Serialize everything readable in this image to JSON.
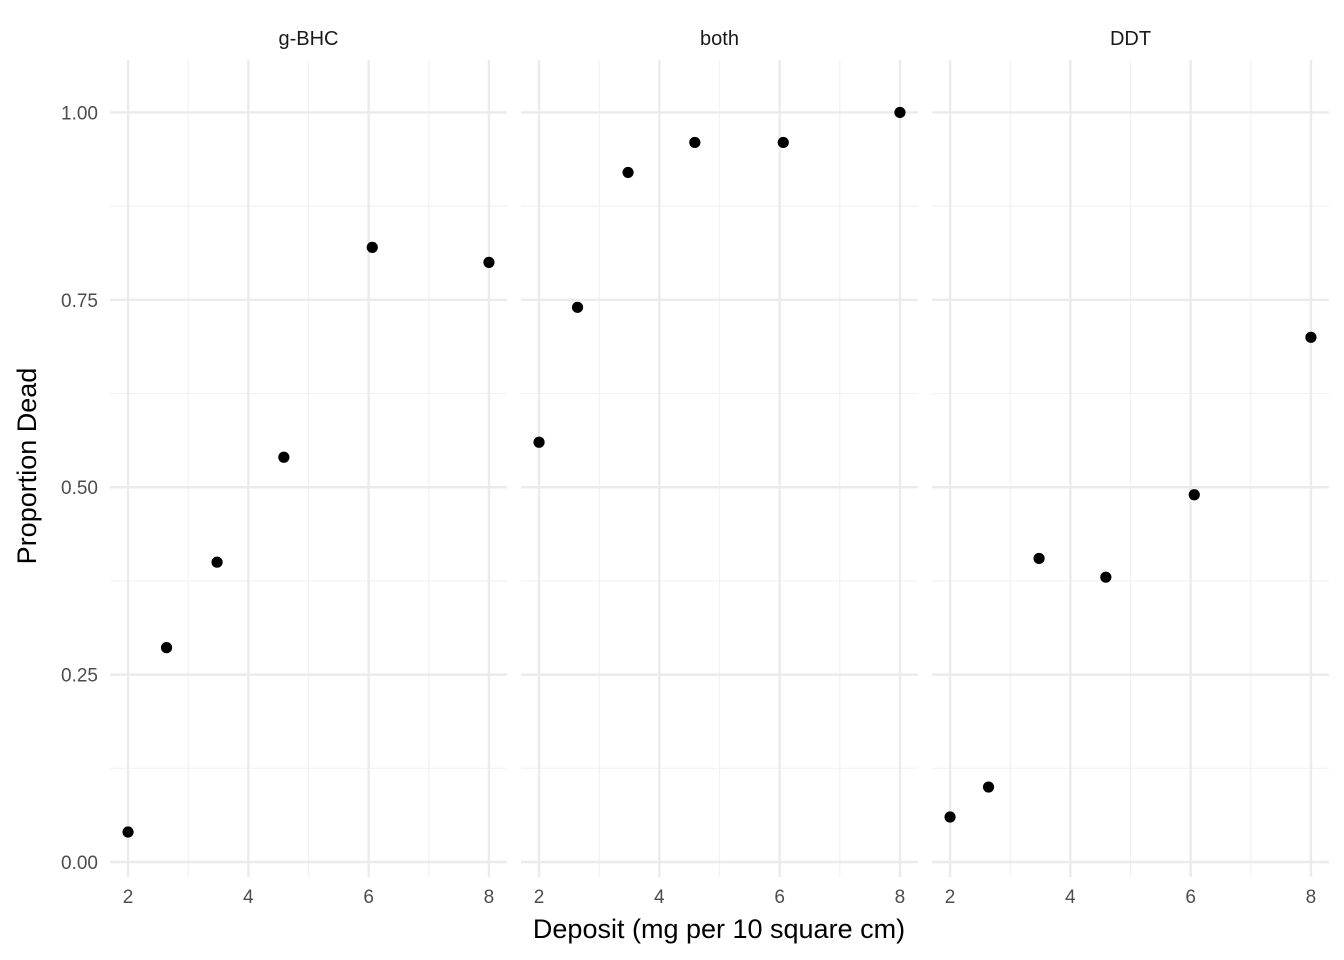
{
  "chart_data": {
    "type": "scatter",
    "xlabel": "Deposit (mg per 10 square cm)",
    "ylabel": "Proportion Dead",
    "xlim": [
      1.7,
      8.3
    ],
    "ylim": [
      -0.02,
      1.07
    ],
    "x_ticks": [
      2,
      4,
      6,
      8
    ],
    "x_tick_labels": [
      "2",
      "4",
      "6",
      "8"
    ],
    "y_ticks": [
      0.0,
      0.25,
      0.5,
      0.75,
      1.0
    ],
    "y_tick_labels": [
      "0.00",
      "0.25",
      "0.50",
      "0.75",
      "1.00"
    ],
    "grid": true,
    "point_color": "#000000",
    "grid_major_color": "#ebebeb",
    "grid_minor_color": "#f2f2f2",
    "facets": [
      {
        "label": "g-BHC",
        "points": [
          {
            "x": 2.0,
            "y": 0.04
          },
          {
            "x": 2.64,
            "y": 0.286
          },
          {
            "x": 3.48,
            "y": 0.4
          },
          {
            "x": 4.59,
            "y": 0.54
          },
          {
            "x": 6.06,
            "y": 0.82
          },
          {
            "x": 8.0,
            "y": 0.8
          }
        ]
      },
      {
        "label": "both",
        "points": [
          {
            "x": 2.0,
            "y": 0.56
          },
          {
            "x": 2.64,
            "y": 0.74
          },
          {
            "x": 3.48,
            "y": 0.92
          },
          {
            "x": 4.59,
            "y": 0.96
          },
          {
            "x": 6.06,
            "y": 0.96
          },
          {
            "x": 8.0,
            "y": 1.0
          }
        ]
      },
      {
        "label": "DDT",
        "points": [
          {
            "x": 2.0,
            "y": 0.06
          },
          {
            "x": 2.64,
            "y": 0.1
          },
          {
            "x": 3.48,
            "y": 0.405
          },
          {
            "x": 4.59,
            "y": 0.38
          },
          {
            "x": 6.06,
            "y": 0.49
          },
          {
            "x": 8.0,
            "y": 0.7
          }
        ]
      }
    ]
  }
}
